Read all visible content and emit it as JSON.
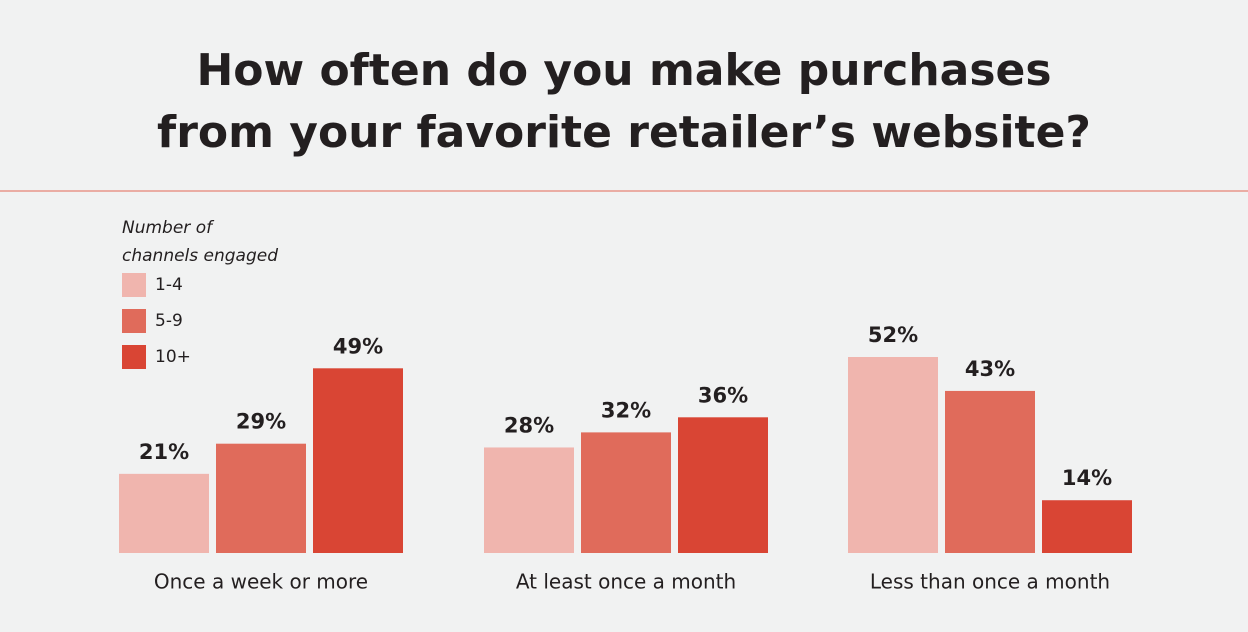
{
  "chart_data": {
    "type": "bar",
    "title": "How often do you make purchases from your favorite retailer’s website?",
    "legend_title": "Number of channels engaged",
    "categories": [
      "Once a week or more",
      "At least once a month",
      "Less than once a month"
    ],
    "series": [
      {
        "name": "1-4",
        "color": "#f0b5ae",
        "values": [
          21,
          28,
          52
        ],
        "value_labels": [
          "21%",
          "28%",
          "52%"
        ]
      },
      {
        "name": "5-9",
        "color": "#e06b5b",
        "values": [
          29,
          32,
          43
        ],
        "value_labels": [
          "29%",
          "32%",
          "43%"
        ]
      },
      {
        "name": "10+",
        "color": "#d94534",
        "values": [
          49,
          36,
          14
        ],
        "value_labels": [
          "49%",
          "36%",
          "14%"
        ]
      }
    ],
    "legend_position": "upper left"
  }
}
